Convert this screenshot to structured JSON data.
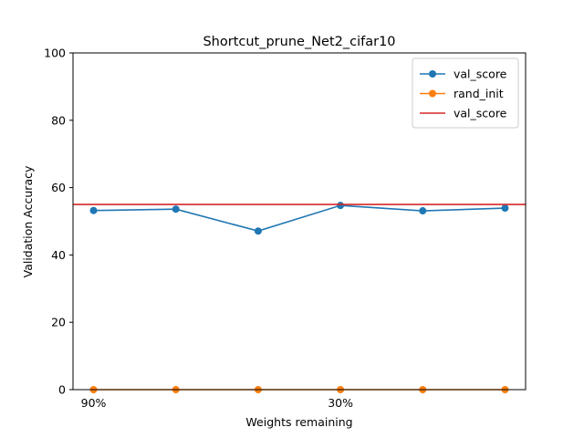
{
  "chart_data": {
    "type": "line",
    "title": "Shortcut_prune_Net2_cifar10",
    "xlabel": "Weights remaining",
    "ylabel": "Validation Accuracy",
    "x": [
      0,
      1,
      2,
      3,
      4,
      5
    ],
    "xticks": [
      {
        "x": 0,
        "label": "90%"
      },
      {
        "x": 3,
        "label": "30%"
      }
    ],
    "xlim": [
      -0.25,
      5.25
    ],
    "ylim": [
      0,
      100
    ],
    "yticks": [
      0,
      20,
      40,
      60,
      80,
      100
    ],
    "grid": false,
    "legend_position": "top-right",
    "series": [
      {
        "name": "val_score",
        "kind": "line-marker",
        "color": "#1f77b4",
        "values": [
          53.2,
          53.6,
          47.1,
          54.7,
          53.1,
          53.9
        ]
      },
      {
        "name": "rand_init",
        "kind": "line-marker",
        "color": "#ff7f0e",
        "values": [
          0,
          0,
          0,
          0,
          0,
          0
        ]
      },
      {
        "name": "val_score",
        "kind": "hline",
        "color": "#d62728",
        "value": 55
      }
    ]
  }
}
